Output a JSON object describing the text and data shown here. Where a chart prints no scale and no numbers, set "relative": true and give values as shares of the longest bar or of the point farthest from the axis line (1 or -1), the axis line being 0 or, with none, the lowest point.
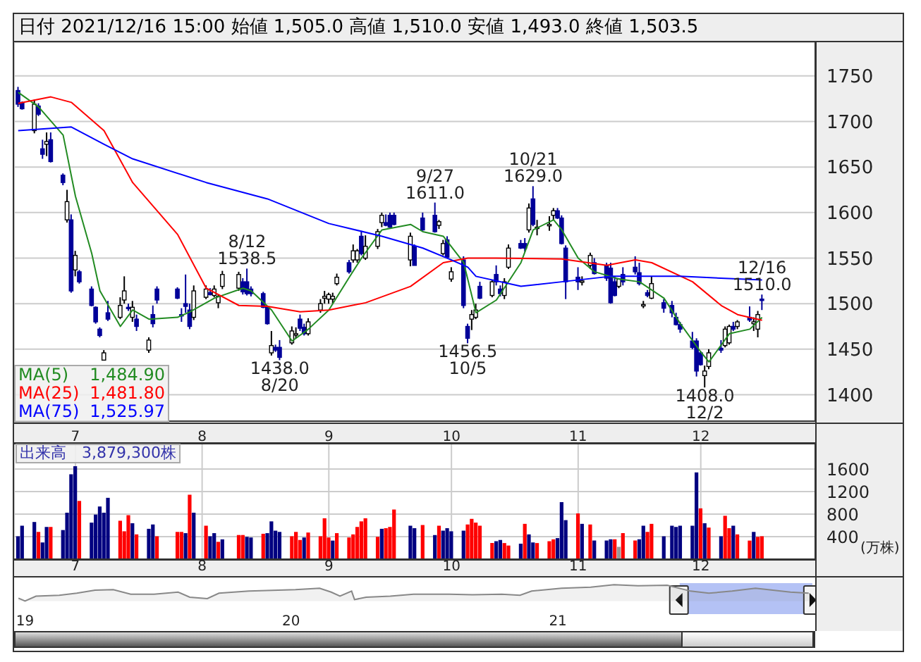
{
  "chart_data": [
    {
      "type": "candlestick",
      "title": "日付 2021/12/16 15:00 始値 1,505.0 高値 1,510.0 安値 1,493.0 終値 1,503.5",
      "x": [
        "2021-06-17",
        "2021-06-18",
        "2021-06-21",
        "2021-06-22",
        "2021-06-23",
        "2021-06-24",
        "2021-06-25",
        "2021-06-28",
        "2021-06-29",
        "2021-06-30",
        "2021-07-01",
        "2021-07-02",
        "2021-07-05",
        "2021-07-06",
        "2021-07-07",
        "2021-07-08",
        "2021-07-09",
        "2021-07-12",
        "2021-07-13",
        "2021-07-14",
        "2021-07-15",
        "2021-07-16",
        "2021-07-19",
        "2021-07-20",
        "2021-07-21",
        "2021-07-26",
        "2021-07-27",
        "2021-07-28",
        "2021-07-29",
        "2021-07-30",
        "2021-08-02",
        "2021-08-03",
        "2021-08-04",
        "2021-08-05",
        "2021-08-06",
        "2021-08-10",
        "2021-08-11",
        "2021-08-12",
        "2021-08-13",
        "2021-08-16",
        "2021-08-17",
        "2021-08-18",
        "2021-08-19",
        "2021-08-20",
        "2021-08-23",
        "2021-08-24",
        "2021-08-25",
        "2021-08-26",
        "2021-08-27",
        "2021-08-30",
        "2021-08-31",
        "2021-09-01",
        "2021-09-02",
        "2021-09-03",
        "2021-09-06",
        "2021-09-07",
        "2021-09-08",
        "2021-09-09",
        "2021-09-10",
        "2021-09-13",
        "2021-09-14",
        "2021-09-15",
        "2021-09-16",
        "2021-09-17",
        "2021-09-21",
        "2021-09-22",
        "2021-09-24",
        "2021-09-27",
        "2021-09-28",
        "2021-09-29",
        "2021-09-30",
        "2021-10-01",
        "2021-10-04",
        "2021-10-05",
        "2021-10-06",
        "2021-10-07",
        "2021-10-08",
        "2021-10-11",
        "2021-10-12",
        "2021-10-13",
        "2021-10-14",
        "2021-10-15",
        "2021-10-18",
        "2021-10-19",
        "2021-10-20",
        "2021-10-21",
        "2021-10-22",
        "2021-10-25",
        "2021-10-26",
        "2021-10-27",
        "2021-10-28",
        "2021-10-29",
        "2021-11-01",
        "2021-11-02",
        "2021-11-04",
        "2021-11-05",
        "2021-11-08",
        "2021-11-09",
        "2021-11-10",
        "2021-11-11",
        "2021-11-12",
        "2021-11-15",
        "2021-11-16",
        "2021-11-17",
        "2021-11-18",
        "2021-11-19",
        "2021-11-22",
        "2021-11-24",
        "2021-11-25",
        "2021-11-26",
        "2021-11-29",
        "2021-11-30",
        "2021-12-01",
        "2021-12-02",
        "2021-12-03",
        "2021-12-06",
        "2021-12-07",
        "2021-12-08",
        "2021-12-09",
        "2021-12-10",
        "2021-12-13",
        "2021-12-14",
        "2021-12-15",
        "2021-12-16"
      ],
      "ohlc": [
        [
          1734,
          1738,
          1716,
          1719
        ],
        [
          1720,
          1722,
          1713,
          1714
        ],
        [
          1690,
          1724,
          1687,
          1719
        ],
        [
          1717,
          1720,
          1706,
          1708
        ],
        [
          1670,
          1680,
          1659,
          1664
        ],
        [
          1675,
          1688,
          1662,
          1678
        ],
        [
          1680,
          1688,
          1655,
          1656
        ],
        [
          1641,
          1643,
          1630,
          1633
        ],
        [
          1592,
          1625,
          1589,
          1612
        ],
        [
          1592,
          1598,
          1512,
          1514
        ],
        [
          1537,
          1558,
          1530,
          1553
        ],
        [
          1535,
          1537,
          1522,
          1524
        ],
        [
          1516,
          1519,
          1497,
          1498
        ],
        [
          1496,
          1497,
          1478,
          1480
        ],
        [
          1472,
          1474,
          1463,
          1465
        ],
        [
          1438,
          1449,
          1438,
          1446
        ],
        [
          1490,
          1503,
          1481,
          1483
        ],
        [
          1485,
          1507,
          1483,
          1498
        ],
        [
          1504,
          1530,
          1500,
          1514
        ],
        [
          1496,
          1500,
          1492,
          1495
        ],
        [
          1485,
          1503,
          1480,
          1496
        ],
        [
          1483,
          1488,
          1470,
          1475
        ],
        [
          1449,
          1463,
          1446,
          1460
        ],
        [
          1488,
          1498,
          1474,
          1478
        ],
        [
          1516,
          1519,
          1500,
          1504
        ],
        [
          1516,
          1518,
          1505,
          1506
        ],
        [
          1488,
          1495,
          1480,
          1487
        ],
        [
          1500,
          1532,
          1490,
          1497
        ],
        [
          1493,
          1500,
          1472,
          1475
        ],
        [
          1485,
          1520,
          1482,
          1514
        ],
        [
          1507,
          1520,
          1505,
          1516
        ],
        [
          1512,
          1517,
          1509,
          1510
        ],
        [
          1509,
          1520,
          1507,
          1516
        ],
        [
          1501,
          1510,
          1495,
          1508
        ],
        [
          1519,
          1536,
          1516,
          1532
        ],
        [
          1517,
          1535,
          1514,
          1532
        ],
        [
          1524,
          1528,
          1510,
          1513
        ],
        [
          1524,
          1538.5,
          1509,
          1511
        ],
        [
          1516,
          1519,
          1508,
          1511
        ],
        [
          1511,
          1513,
          1495,
          1496
        ],
        [
          1496,
          1497,
          1477,
          1478
        ],
        [
          1446,
          1470,
          1443,
          1454
        ],
        [
          1452,
          1455,
          1447,
          1449
        ],
        [
          1452,
          1460,
          1438,
          1441
        ],
        [
          1457,
          1475,
          1455,
          1470
        ],
        [
          1466,
          1474,
          1462,
          1467
        ],
        [
          1483,
          1488,
          1470,
          1473
        ],
        [
          1474,
          1478,
          1465,
          1467
        ],
        [
          1467,
          1484,
          1465,
          1480
        ],
        [
          1493,
          1505,
          1490,
          1500
        ],
        [
          1506,
          1514,
          1500,
          1508
        ],
        [
          1505,
          1512,
          1500,
          1510
        ],
        [
          1505,
          1512,
          1500,
          1508
        ],
        [
          1522,
          1533,
          1520,
          1529
        ],
        [
          1545,
          1548,
          1533,
          1535
        ],
        [
          1548,
          1565,
          1545,
          1558
        ],
        [
          1548,
          1560,
          1545,
          1558
        ],
        [
          1574,
          1580,
          1553,
          1555
        ],
        [
          1550,
          1575,
          1548,
          1563
        ],
        [
          1563,
          1582,
          1560,
          1579
        ],
        [
          1589,
          1600,
          1584,
          1597
        ],
        [
          1589,
          1598,
          1585,
          1586
        ],
        [
          1597,
          1600,
          1583,
          1584
        ],
        [
          1597,
          1600,
          1586,
          1587
        ],
        [
          1548,
          1578,
          1541,
          1574
        ],
        [
          1563,
          1565,
          1542,
          1542
        ],
        [
          1594,
          1600,
          1580,
          1581
        ],
        [
          1597,
          1611,
          1578,
          1579
        ],
        [
          1586,
          1592,
          1582,
          1590
        ],
        [
          1555,
          1570,
          1553,
          1566
        ],
        [
          1570,
          1574,
          1550,
          1551
        ],
        [
          1527,
          1540,
          1524,
          1535
        ],
        [
          1548,
          1552,
          1495,
          1498
        ],
        [
          1475,
          1478,
          1456.5,
          1462
        ],
        [
          1483,
          1493,
          1471,
          1488
        ],
        [
          1485,
          1500,
          1483,
          1493
        ],
        [
          1519,
          1524,
          1505,
          1506
        ],
        [
          1509,
          1526,
          1507,
          1524
        ],
        [
          1532,
          1542,
          1520,
          1524
        ],
        [
          1516,
          1520,
          1508,
          1511
        ],
        [
          1509,
          1528,
          1505,
          1524
        ],
        [
          1540,
          1565,
          1538,
          1561
        ],
        [
          1566,
          1570,
          1560,
          1561
        ],
        [
          1566,
          1572,
          1557,
          1561
        ],
        [
          1581,
          1610,
          1578,
          1605
        ],
        [
          1615,
          1629,
          1585,
          1587
        ],
        [
          1584,
          1592,
          1575,
          1584
        ],
        [
          1586,
          1596,
          1580,
          1587
        ],
        [
          1597,
          1605,
          1592,
          1602
        ],
        [
          1602,
          1605,
          1593,
          1594
        ],
        [
          1594,
          1597,
          1565,
          1566
        ],
        [
          1561,
          1564,
          1505,
          1524
        ],
        [
          1529,
          1540,
          1515,
          1524
        ],
        [
          1524,
          1530,
          1520,
          1525
        ],
        [
          1542,
          1556,
          1538,
          1553
        ],
        [
          1545,
          1550,
          1532,
          1533
        ],
        [
          1542,
          1545,
          1525,
          1528
        ],
        [
          1539,
          1545,
          1500,
          1501
        ],
        [
          1524,
          1530,
          1508,
          1509
        ],
        [
          1519,
          1528,
          1517,
          1527
        ],
        [
          1532,
          1540,
          1520,
          1524
        ],
        [
          1540,
          1552,
          1532,
          1535
        ],
        [
          1534,
          1545,
          1520,
          1522
        ],
        [
          1499,
          1503,
          1495,
          1499
        ],
        [
          1512,
          1515,
          1507,
          1509
        ],
        [
          1506,
          1530,
          1505,
          1522
        ],
        [
          1501,
          1505,
          1490,
          1495
        ],
        [
          1498,
          1503,
          1485,
          1490
        ],
        [
          1485,
          1490,
          1476,
          1477
        ],
        [
          1477,
          1480,
          1468,
          1472
        ],
        [
          1459,
          1469,
          1450,
          1452
        ],
        [
          1459,
          1462,
          1420,
          1426
        ],
        [
          1446,
          1448,
          1432,
          1433
        ],
        [
          1421,
          1432,
          1408,
          1426
        ],
        [
          1431,
          1450,
          1428,
          1446
        ],
        [
          1451,
          1460,
          1446,
          1449
        ],
        [
          1454,
          1475,
          1452,
          1472
        ],
        [
          1457,
          1477,
          1455,
          1475
        ],
        [
          1475,
          1480,
          1470,
          1472
        ],
        [
          1475,
          1482,
          1472,
          1480
        ],
        [
          1485,
          1497,
          1480,
          1482
        ],
        [
          1478,
          1485,
          1470,
          1480
        ],
        [
          1472,
          1492,
          1463,
          1488
        ],
        [
          1505,
          1510,
          1493,
          1503.5
        ]
      ],
      "series": [
        {
          "name": "MA(5)",
          "type": "line",
          "color": "#228b22",
          "x": [
            "2021-06-17",
            "2021-06-22",
            "2021-06-28",
            "2021-07-01",
            "2021-07-05",
            "2021-07-07",
            "2021-07-12",
            "2021-07-15",
            "2021-07-19",
            "2021-07-26",
            "2021-07-29",
            "2021-08-04",
            "2021-08-11",
            "2021-08-13",
            "2021-08-18",
            "2021-08-23",
            "2021-08-27",
            "2021-09-01",
            "2021-09-06",
            "2021-09-09",
            "2021-09-14",
            "2021-09-21",
            "2021-09-24",
            "2021-09-29",
            "2021-10-04",
            "2021-10-07",
            "2021-10-12",
            "2021-10-18",
            "2021-10-21",
            "2021-10-26",
            "2021-10-28",
            "2021-11-01",
            "2021-11-05",
            "2021-11-11",
            "2021-11-16",
            "2021-11-22",
            "2021-11-26",
            "2021-12-01",
            "2021-12-03",
            "2021-12-08",
            "2021-12-13",
            "2021-12-16"
          ],
          "values": [
            1732,
            1716,
            1685,
            1618,
            1555,
            1514,
            1475,
            1493,
            1483,
            1485,
            1491,
            1506,
            1517,
            1514,
            1493,
            1459,
            1472,
            1493,
            1529,
            1550,
            1581,
            1587,
            1579,
            1574,
            1545,
            1490,
            1504,
            1545,
            1581,
            1592,
            1581,
            1550,
            1535,
            1527,
            1524,
            1506,
            1478,
            1447,
            1436,
            1467,
            1472,
            1484.9
          ]
        },
        {
          "name": "MA(25)",
          "type": "line",
          "color": "#ff0000",
          "x": [
            "2021-06-17",
            "2021-06-25",
            "2021-06-30",
            "2021-07-08",
            "2021-07-15",
            "2021-07-26",
            "2021-08-02",
            "2021-08-10",
            "2021-08-17",
            "2021-08-25",
            "2021-09-01",
            "2021-09-10",
            "2021-09-21",
            "2021-09-29",
            "2021-10-05",
            "2021-10-12",
            "2021-10-28",
            "2021-11-08",
            "2021-11-15",
            "2021-11-19",
            "2021-11-29",
            "2021-12-06",
            "2021-12-10",
            "2021-12-16"
          ],
          "values": [
            1720,
            1727,
            1721,
            1690,
            1633,
            1576,
            1517,
            1498,
            1497,
            1491,
            1493,
            1501,
            1519,
            1545,
            1550,
            1550,
            1549,
            1542,
            1548,
            1545,
            1524,
            1498,
            1488,
            1481.8
          ]
        },
        {
          "name": "MA(75)",
          "type": "line",
          "color": "#0000ff",
          "x": [
            "2021-06-17",
            "2021-06-30",
            "2021-07-08",
            "2021-07-15",
            "2021-08-02",
            "2021-08-17",
            "2021-09-01",
            "2021-09-14",
            "2021-09-24",
            "2021-10-01",
            "2021-10-05",
            "2021-10-07",
            "2021-10-18",
            "2021-10-28",
            "2021-11-09",
            "2021-11-26",
            "2021-12-16"
          ],
          "values": [
            1690,
            1694,
            1675,
            1659,
            1633,
            1615,
            1588,
            1574,
            1561,
            1548,
            1540,
            1530,
            1519,
            1524,
            1530,
            1530,
            1525.97
          ]
        }
      ],
      "annotations": [
        {
          "text": "8/12\n1538.5",
          "x": "2021-08-12",
          "y": 1538.5
        },
        {
          "text": "1438.0\n8/20",
          "x": "2021-08-20",
          "y": 1438
        },
        {
          "text": "9/27\n1611.0",
          "x": "2021-09-27",
          "y": 1611
        },
        {
          "text": "1456.5\n10/5",
          "x": "2021-10-05",
          "y": 1456.5
        },
        {
          "text": "10/21\n1629.0",
          "x": "2021-10-21",
          "y": 1629
        },
        {
          "text": "1408.0\n12/2",
          "x": "2021-12-02",
          "y": 1408
        },
        {
          "text": "12/16\n1510.0",
          "x": "2021-12-16",
          "y": 1510
        },
        "1,484.90",
        "1,481.80",
        "1,525.97"
      ],
      "xlim": [
        "2021-06-16",
        "2021-12-29"
      ],
      "xticks": [
        {
          "value": "2021-07-01",
          "label": null
        },
        {
          "value": "2021-08-01",
          "label": null
        },
        {
          "value": "2021-09-01",
          "label": null
        },
        {
          "value": "2021-10-01",
          "label": null
        },
        {
          "value": "2021-11-01",
          "label": null
        },
        {
          "value": "2021-12-01",
          "label": null
        }
      ],
      "ylim": [
        1371,
        1787
      ],
      "yticks": [
        1400,
        1450,
        1500,
        1550,
        1600,
        1650,
        1700,
        1750
      ],
      "tick_labels": "y",
      "grid": true,
      "legend": "bottom left"
    },
    {
      "type": "bar",
      "title": "出来高　3,879,300株",
      "ylabel": "(万株)",
      "x": [
        "2021-06-17",
        "2021-06-18",
        "2021-06-21",
        "2021-06-22",
        "2021-06-23",
        "2021-06-24",
        "2021-06-25",
        "2021-06-28",
        "2021-06-29",
        "2021-06-30",
        "2021-07-01",
        "2021-07-02",
        "2021-07-05",
        "2021-07-06",
        "2021-07-07",
        "2021-07-08",
        "2021-07-09",
        "2021-07-12",
        "2021-07-13",
        "2021-07-14",
        "2021-07-15",
        "2021-07-16",
        "2021-07-19",
        "2021-07-20",
        "2021-07-21",
        "2021-07-26",
        "2021-07-27",
        "2021-07-28",
        "2021-07-29",
        "2021-07-30",
        "2021-08-02",
        "2021-08-03",
        "2021-08-04",
        "2021-08-05",
        "2021-08-06",
        "2021-08-10",
        "2021-08-11",
        "2021-08-12",
        "2021-08-13",
        "2021-08-16",
        "2021-08-17",
        "2021-08-18",
        "2021-08-19",
        "2021-08-20",
        "2021-08-23",
        "2021-08-24",
        "2021-08-25",
        "2021-08-26",
        "2021-08-27",
        "2021-08-30",
        "2021-08-31",
        "2021-09-01",
        "2021-09-02",
        "2021-09-03",
        "2021-09-06",
        "2021-09-07",
        "2021-09-08",
        "2021-09-09",
        "2021-09-10",
        "2021-09-13",
        "2021-09-14",
        "2021-09-15",
        "2021-09-16",
        "2021-09-17",
        "2021-09-21",
        "2021-09-22",
        "2021-09-24",
        "2021-09-27",
        "2021-09-28",
        "2021-09-29",
        "2021-09-30",
        "2021-10-01",
        "2021-10-04",
        "2021-10-05",
        "2021-10-06",
        "2021-10-07",
        "2021-10-08",
        "2021-10-11",
        "2021-10-12",
        "2021-10-13",
        "2021-10-14",
        "2021-10-15",
        "2021-10-18",
        "2021-10-19",
        "2021-10-20",
        "2021-10-21",
        "2021-10-22",
        "2021-10-25",
        "2021-10-26",
        "2021-10-27",
        "2021-10-28",
        "2021-10-29",
        "2021-11-01",
        "2021-11-02",
        "2021-11-04",
        "2021-11-05",
        "2021-11-08",
        "2021-11-09",
        "2021-11-10",
        "2021-11-11",
        "2021-11-12",
        "2021-11-15",
        "2021-11-16",
        "2021-11-17",
        "2021-11-18",
        "2021-11-19",
        "2021-11-22",
        "2021-11-24",
        "2021-11-25",
        "2021-11-26",
        "2021-11-29",
        "2021-11-30",
        "2021-12-01",
        "2021-12-02",
        "2021-12-03",
        "2021-12-06",
        "2021-12-07",
        "2021-12-08",
        "2021-12-09",
        "2021-12-10",
        "2021-12-13",
        "2021-12-14",
        "2021-12-15",
        "2021-12-16"
      ],
      "values": [
        407,
        594,
        660,
        484,
        297,
        572,
        572,
        517,
        825,
        1507,
        1650,
        1034,
        649,
        792,
        935,
        825,
        1089,
        682,
        495,
        781,
        638,
        440,
        539,
        616,
        407,
        484,
        484,
        462,
        1144,
        825,
        594,
        407,
        462,
        308,
        352,
        429,
        429,
        396,
        385,
        451,
        462,
        671,
        506,
        484,
        407,
        484,
        341,
        385,
        473,
        407,
        726,
        385,
        330,
        462,
        385,
        440,
        572,
        671,
        726,
        396,
        539,
        550,
        572,
        880,
        594,
        550,
        605,
        429,
        594,
        506,
        550,
        495,
        506,
        616,
        715,
        649,
        594,
        286,
        319,
        341,
        286,
        242,
        275,
        627,
        440,
        297,
        286,
        319,
        352,
        374,
        1012,
        693,
        814,
        627,
        616,
        330,
        330,
        352,
        352,
        220,
        462,
        330,
        352,
        594,
        484,
        627,
        407,
        594,
        572,
        594,
        594,
        1540,
        902,
        638,
        561,
        407,
        770,
        550,
        594,
        440,
        330,
        484,
        396,
        407
      ],
      "colors": [
        "#000080",
        "#000080",
        "#000080",
        "#ff0000",
        "#000080",
        "#000080",
        "#ff0000",
        "#000080",
        "#000080",
        "#000080",
        "#000080",
        "#ff0000",
        "#000080",
        "#000080",
        "#000080",
        "#000080",
        "#000080",
        "#ff0000",
        "#ff0000",
        "#ff0000",
        "#000080",
        "#ff0000",
        "#000080",
        "#000080",
        "#ff0000",
        "#ff0000",
        "#ff0000",
        "#000080",
        "#ff0000",
        "#000080",
        "#ff0000",
        "#000080",
        "#000080",
        "#ff0000",
        "#000080",
        "#ff0000",
        "#ff0000",
        "#000080",
        "#000080",
        "#ff0000",
        "#000080",
        "#000080",
        "#000080",
        "#000080",
        "#ff0000",
        "#ff0000",
        "#ff0000",
        "#000080",
        "#ff0000",
        "#ff0000",
        "#ff0000",
        "#ff0000",
        "#000080",
        "#ff0000",
        "#ff0000",
        "#ff0000",
        "#ff0000",
        "#ff0000",
        "#ff0000",
        "#ff0000",
        "#000080",
        "#ff0000",
        "#ff0000",
        "#ff0000",
        "#000080",
        "#000080",
        "#ff0000",
        "#000080",
        "#ff0000",
        "#000080",
        "#000080",
        "#000080",
        "#000080",
        "#ff0000",
        "#ff0000",
        "#ff0000",
        "#ff0000",
        "#ff0000",
        "#000080",
        "#000080",
        "#ff0000",
        "#ff0000",
        "#000080",
        "#ff0000",
        "#000080",
        "#000080",
        "#ff0000",
        "#ff0000",
        "#ff0000",
        "#000080",
        "#000080",
        "#000080",
        "#ff0000",
        "#000080",
        "#ff0000",
        "#000080",
        "#000080",
        "#000080",
        "#ff0000",
        "#999999",
        "#ff0000",
        "#ff0000",
        "#000080",
        "#000080",
        "#ff0000",
        "#ff0000",
        "#000080",
        "#000080",
        "#000080",
        "#000080",
        "#000080",
        "#000080",
        "#ff0000",
        "#000080",
        "#ff0000",
        "#000080",
        "#ff0000",
        "#ff0000",
        "#000080",
        "#ff0000",
        "#ff0000",
        "#000080",
        "#ff0000",
        "#ff0000"
      ],
      "xlim": [
        "2021-06-16",
        "2021-12-29"
      ],
      "xticks": [
        {
          "value": "2021-07-01",
          "label": "7"
        },
        {
          "value": "2021-08-01",
          "label": "8"
        },
        {
          "value": "2021-09-01",
          "label": "9"
        },
        {
          "value": "2021-10-01",
          "label": "10"
        },
        {
          "value": "2021-11-01",
          "label": "11"
        },
        {
          "value": "2021-12-01",
          "label": "12"
        }
      ],
      "x2lim": [
        "2021-06-16",
        "2021-12-29"
      ],
      "x2ticks": [
        {
          "value": "2021-07-01",
          "label": "7"
        },
        {
          "value": "2021-08-01",
          "label": "8"
        },
        {
          "value": "2021-09-01",
          "label": "9"
        },
        {
          "value": "2021-10-01",
          "label": "10"
        },
        {
          "value": "2021-11-01",
          "label": "11"
        },
        {
          "value": "2021-12-01",
          "label": "12"
        }
      ],
      "ylim": [
        0,
        2050
      ],
      "yticks": [
        400,
        800,
        1200,
        1600
      ],
      "grid": true
    },
    {
      "type": "area",
      "relative": true,
      "color": "#888888",
      "x": [
        "2018-12-23",
        "2019-01-01",
        "2019-01-16",
        "2019-02-17",
        "2019-03-13",
        "2019-04-07",
        "2019-05-02",
        "2019-05-26",
        "2019-06-27",
        "2019-07-30",
        "2019-08-15",
        "2019-09-08",
        "2019-09-24",
        "2019-11-04",
        "2019-12-14",
        "2020-01-07",
        "2020-02-09",
        "2020-02-25",
        "2020-03-08",
        "2020-03-24",
        "2020-03-28",
        "2020-04-13",
        "2020-05-16",
        "2020-06-17",
        "2020-08-05",
        "2020-09-06",
        "2020-10-16",
        "2020-11-10",
        "2020-11-26",
        "2021-01-06",
        "2021-02-15",
        "2021-03-19",
        "2021-04-21",
        "2021-05-31",
        "2021-07-02",
        "2021-07-27",
        "2021-08-28",
        "2021-09-29",
        "2021-11-16",
        "2021-12-11"
      ],
      "values": [
        0.18,
        0,
        0.3,
        0.36,
        0.48,
        0.67,
        0.7,
        0.42,
        0.42,
        0.55,
        0.24,
        0.15,
        0.48,
        0.61,
        0.67,
        0.7,
        0.79,
        0.55,
        0.3,
        0.61,
        0.09,
        0.24,
        0.3,
        0.42,
        0.42,
        0.39,
        0.42,
        0.36,
        0.61,
        0.79,
        0.85,
        1,
        0.94,
        0.97,
        0.61,
        0.48,
        0.61,
        0.79,
        0.55,
        0.48
      ],
      "xlim": [
        "2018-12-17",
        "2021-12-20"
      ],
      "xticks": [
        {
          "value": "2019-01-01",
          "label": "19"
        },
        {
          "value": "2020-01-01",
          "label": "20"
        },
        {
          "value": "2021-01-01",
          "label": "21"
        }
      ],
      "bands": [
        {
          "axis": "x",
          "from": "2021-06-17",
          "to": "2021-12-16",
          "color": "#b4c2f5"
        }
      ]
    }
  ]
}
